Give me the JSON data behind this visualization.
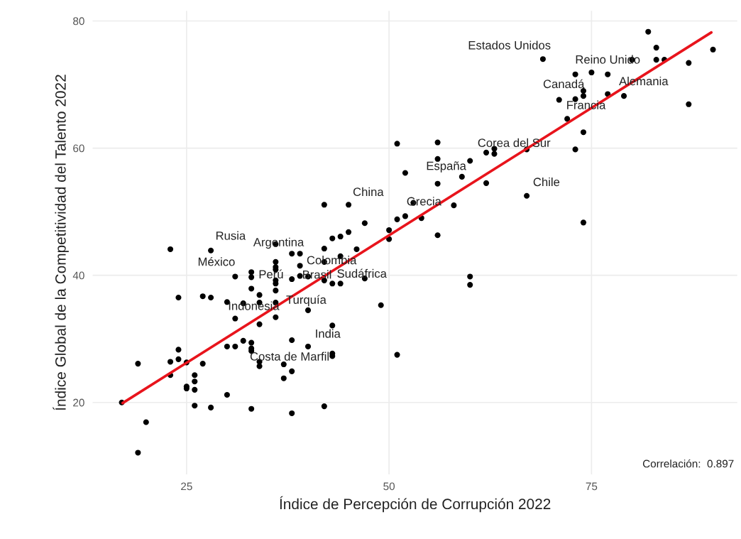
{
  "chart_data": {
    "type": "scatter",
    "xlabel": "Índice de Percepción de Corrupción 2022",
    "ylabel": "Índice Global de la Competitividad del Talento 2022",
    "xlim": [
      13.4,
      93.0
    ],
    "ylim": [
      8.7,
      81.6
    ],
    "xticks": [
      25,
      50,
      75
    ],
    "yticks": [
      20,
      40,
      60,
      80
    ],
    "grid": true,
    "legend": false,
    "marker": "circle",
    "series": [
      {
        "color": "#000000",
        "x": [
          19,
          20,
          17,
          19,
          23,
          24,
          24,
          23,
          25,
          27,
          26,
          26,
          25,
          25,
          26,
          26,
          28,
          30,
          33,
          38,
          42,
          23,
          28,
          24,
          27,
          28,
          31,
          33,
          33,
          33,
          34,
          32,
          30,
          34,
          31,
          34,
          36,
          36,
          36,
          36,
          36,
          36,
          36,
          36,
          36,
          38,
          39,
          39,
          38,
          39,
          40,
          40,
          42,
          42,
          43,
          44,
          43,
          43,
          38,
          40,
          43,
          43,
          32,
          33,
          33,
          33,
          30,
          31,
          34,
          34,
          37,
          38,
          37,
          51,
          56,
          56,
          60,
          62,
          63,
          63,
          52,
          59,
          56,
          62,
          42,
          45,
          53,
          58,
          52,
          51,
          54,
          47,
          50,
          50,
          56,
          45,
          46,
          44,
          42,
          44,
          47,
          60,
          60,
          49,
          51,
          82,
          83,
          83,
          84,
          80,
          87,
          90,
          87,
          69,
          73,
          75,
          77,
          74,
          74,
          73,
          71,
          77,
          79,
          72,
          74,
          73,
          67,
          67,
          74
        ],
        "values": [
          12.1,
          16.9,
          20.0,
          26.1,
          26.4,
          28.3,
          26.8,
          24.3,
          26.3,
          26.1,
          24.3,
          23.3,
          22.5,
          22.2,
          22.0,
          19.5,
          19.2,
          21.2,
          19.0,
          18.3,
          19.4,
          44.1,
          43.9,
          36.5,
          36.7,
          36.5,
          39.8,
          40.5,
          39.7,
          37.9,
          36.9,
          35.6,
          35.8,
          35.7,
          33.2,
          32.3,
          42.1,
          41.3,
          40.9,
          39.2,
          38.7,
          37.6,
          35.7,
          33.4,
          44.9,
          43.4,
          43.4,
          41.5,
          39.4,
          39.9,
          39.8,
          34.5,
          44.2,
          39.2,
          45.8,
          46.1,
          38.7,
          32.1,
          29.8,
          28.8,
          27.7,
          27.3,
          29.7,
          29.4,
          28.5,
          28.1,
          28.8,
          28.8,
          26.4,
          25.7,
          26.0,
          24.9,
          23.8,
          60.7,
          60.9,
          58.3,
          58.0,
          59.3,
          59.9,
          59.1,
          56.1,
          55.5,
          54.4,
          54.5,
          51.1,
          51.1,
          51.4,
          51.0,
          49.3,
          48.8,
          49.0,
          48.2,
          47.1,
          45.7,
          46.3,
          46.8,
          44.1,
          43.0,
          42.1,
          38.7,
          39.5,
          39.8,
          38.5,
          35.3,
          27.5,
          78.3,
          75.8,
          73.9,
          73.9,
          73.9,
          73.4,
          75.5,
          66.9,
          74.0,
          71.6,
          71.9,
          71.6,
          69.0,
          68.2,
          67.7,
          67.6,
          68.5,
          68.2,
          64.6,
          62.5,
          59.8,
          59.8,
          52.5,
          48.3
        ]
      },
      {
        "type": "line",
        "color": "#e8141c",
        "line_style": "solid",
        "marker": "none",
        "x": [
          17.1,
          89.8
        ],
        "values": [
          19.9,
          78.2
        ]
      }
    ],
    "annotations": [
      {
        "text": "Estados Unidos",
        "x": 69,
        "y": 74.0
      },
      {
        "text": "Reino Unido",
        "x": 77,
        "y": 71.6
      },
      {
        "text": "Canadá",
        "x": 74,
        "y": 69.0
      },
      {
        "text": "Alemania",
        "x": 79,
        "y": 68.2
      },
      {
        "text": "Francia",
        "x": 72,
        "y": 64.6
      },
      {
        "text": "Corea del Sur",
        "x": 63,
        "y": 59.9
      },
      {
        "text": "España",
        "x": 59,
        "y": 55.5
      },
      {
        "text": "Chile",
        "x": 67,
        "y": 52.5
      },
      {
        "text": "Grecia",
        "x": 52,
        "y": 49.3
      },
      {
        "text": "China",
        "x": 45,
        "y": 51.1
      },
      {
        "text": "Rusia",
        "x": 28,
        "y": 43.9
      },
      {
        "text": "Argentina",
        "x": 36,
        "y": 44.9
      },
      {
        "text": "México",
        "x": 31,
        "y": 39.8
      },
      {
        "text": "Colombia",
        "x": 44,
        "y": 43.0
      },
      {
        "text": "Perú",
        "x": 33,
        "y": 39.7
      },
      {
        "text": "Brasil",
        "x": 40,
        "y": 39.8
      },
      {
        "text": "Sudáfrica",
        "x": 47,
        "y": 39.5
      },
      {
        "text": "Indonesia",
        "x": 30,
        "y": 35.8
      },
      {
        "text": "Turquía",
        "x": 36,
        "y": 35.7
      },
      {
        "text": "India",
        "x": 40,
        "y": 28.8
      },
      {
        "text": "Costa de Marfil",
        "x": 43,
        "y": 27.7
      },
      "Correlación:  0.897"
    ]
  }
}
